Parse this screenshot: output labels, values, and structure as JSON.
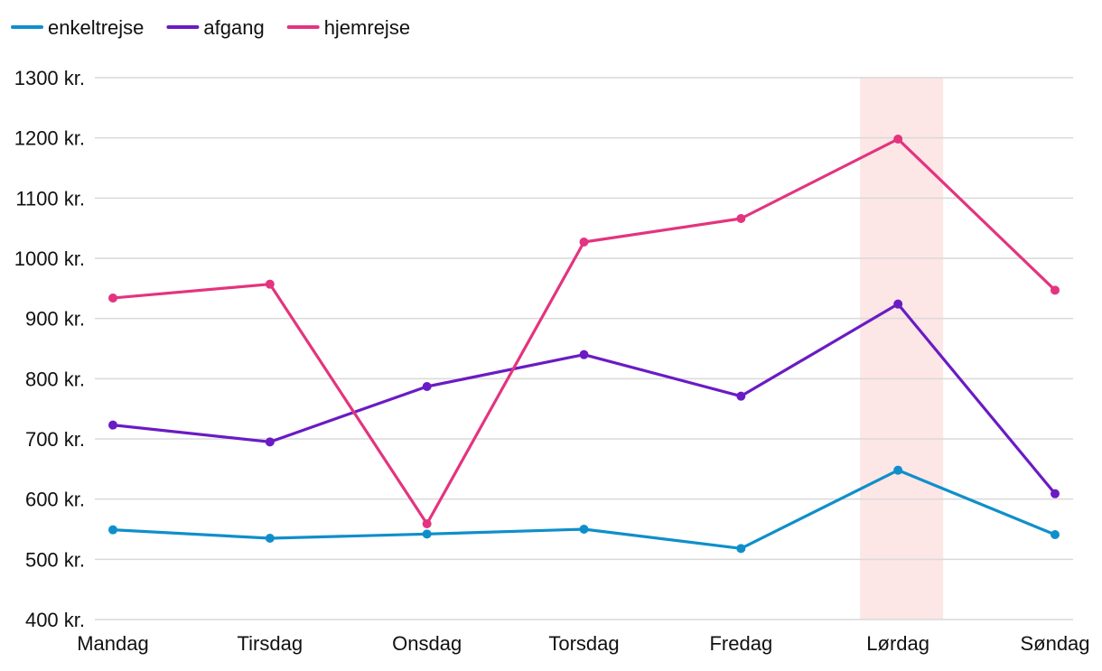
{
  "chart_data": {
    "type": "line",
    "categories": [
      "Mandag",
      "Tirsdag",
      "Onsdag",
      "Torsdag",
      "Fredag",
      "Lørdag",
      "Søndag"
    ],
    "series": [
      {
        "name": "enkeltrejse",
        "color": "#0f8fca",
        "values": [
          549,
          535,
          542,
          550,
          518,
          648,
          541
        ]
      },
      {
        "name": "afgang",
        "color": "#6a1bc4",
        "values": [
          723,
          695,
          787,
          840,
          771,
          924,
          609
        ]
      },
      {
        "name": "hjemrejse",
        "color": "#e3347f",
        "values": [
          934,
          957,
          559,
          1027,
          1066,
          1198,
          947
        ]
      }
    ],
    "yticks": [
      {
        "value": 1300,
        "label": "1300 kr."
      },
      {
        "value": 1200,
        "label": "1200 kr."
      },
      {
        "value": 1100,
        "label": "1100 kr."
      },
      {
        "value": 1000,
        "label": "1000 kr."
      },
      {
        "value": 900,
        "label": "900 kr."
      },
      {
        "value": 800,
        "label": "800 kr."
      },
      {
        "value": 700,
        "label": "700 kr."
      },
      {
        "value": 600,
        "label": "600 kr."
      },
      {
        "value": 500,
        "label": "500 kr."
      },
      {
        "value": 400,
        "label": "400 kr."
      }
    ],
    "ylim": [
      400,
      1300
    ],
    "highlight": {
      "category": "Lørdag",
      "color": "#fde6e6"
    },
    "legend_position": "top-left",
    "grid": true,
    "title": "",
    "xlabel": "",
    "ylabel": ""
  }
}
